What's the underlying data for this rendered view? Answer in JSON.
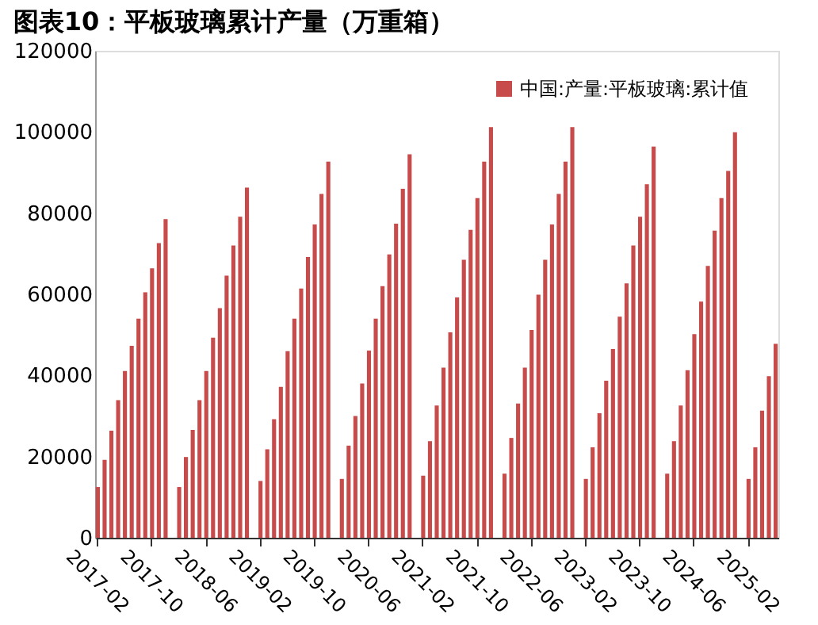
{
  "chart_data": {
    "type": "bar",
    "title": "图表10：平板玻璃累计产量（万重箱）",
    "categories": [
      "2017-02",
      null,
      null,
      null,
      null,
      null,
      null,
      null,
      "2017-10",
      null,
      null,
      null,
      null,
      null,
      null,
      null,
      "2018-06",
      null,
      null,
      null,
      null,
      null,
      null,
      null,
      "2019-02",
      null,
      null,
      null,
      null,
      null,
      null,
      null,
      "2019-10",
      null,
      null,
      null,
      null,
      null,
      null,
      null,
      "2020-06",
      null,
      null,
      null,
      null,
      null,
      null,
      null,
      "2021-02",
      null,
      null,
      null,
      null,
      null,
      null,
      null,
      "2021-10",
      null,
      null,
      null,
      null,
      null,
      null,
      null,
      "2022-06",
      null,
      null,
      null,
      null,
      null,
      null,
      null,
      "2023-02",
      null,
      null,
      null,
      null,
      null,
      null,
      null,
      "2023-10",
      null,
      null,
      null,
      null,
      null,
      null,
      null,
      "2024-06",
      null,
      null,
      null,
      null,
      null,
      null,
      null,
      "2025-02",
      null,
      null,
      null,
      null
    ],
    "series": [
      {
        "name": "中国:产量:平板玻璃:累计值",
        "color": "#c84b4b",
        "values": [
          12500,
          19200,
          26400,
          33900,
          41100,
          47300,
          54000,
          60500,
          66400,
          72600,
          78500,
          null,
          12500,
          19900,
          26600,
          33900,
          41100,
          49300,
          56600,
          64600,
          72000,
          79100,
          86300,
          null,
          14000,
          21800,
          29200,
          37200,
          46000,
          54000,
          61400,
          69200,
          77200,
          84700,
          92700,
          null,
          14500,
          22700,
          30000,
          38000,
          46100,
          54000,
          62000,
          69800,
          77400,
          86000,
          94500,
          null,
          15300,
          23800,
          32600,
          41900,
          50600,
          59200,
          68500,
          75900,
          83700,
          92700,
          101200,
          null,
          15800,
          24600,
          33100,
          41900,
          51200,
          59900,
          68500,
          77200,
          84700,
          92700,
          101200,
          null,
          14500,
          22300,
          30700,
          38700,
          46500,
          54500,
          62700,
          72000,
          79100,
          87100,
          96400,
          null,
          15800,
          23800,
          32600,
          41300,
          50200,
          58200,
          67000,
          75700,
          83700,
          90400,
          99900,
          null,
          14500,
          22300,
          31300,
          39800,
          47800
        ]
      }
    ],
    "ylim": [
      0,
      120000
    ],
    "yticks": [
      0,
      20000,
      40000,
      60000,
      80000,
      100000,
      120000
    ],
    "grid": false,
    "legend": "top right"
  }
}
